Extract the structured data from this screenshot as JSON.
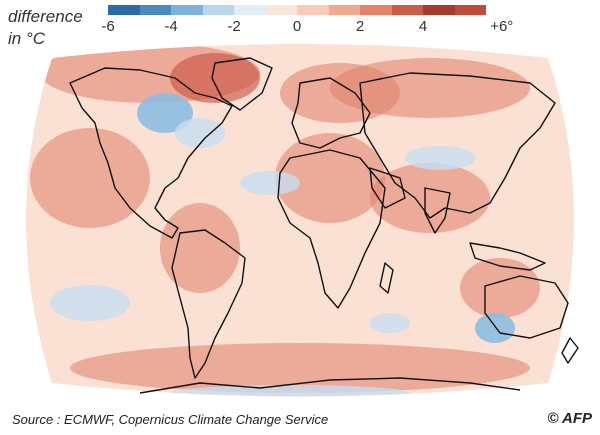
{
  "legend": {
    "title": "difference\nin °C",
    "ticks": [
      "-6",
      "-4",
      "-2",
      "0",
      "2",
      "4",
      "+6°"
    ],
    "colors": [
      "#2b6aa8",
      "#4a8ac0",
      "#7fb2d8",
      "#b9d7ea",
      "#e2eef6",
      "#fbe6dc",
      "#f7cbb8",
      "#f0a991",
      "#e3836b",
      "#cc5a48",
      "#a63a2f",
      "#c14a3a"
    ]
  },
  "footer": {
    "source": "Source : ECMWF, Copernicus Climate Change Service"
  },
  "credit": {
    "text": "© AFP"
  },
  "map": {
    "ocean_color": "#fbe0d4",
    "land_color": "#f2b9a3",
    "warm_color": "#e07e68",
    "hot_color": "#c94f3d",
    "cool_color": "#c6def0",
    "cold_color": "#8dbde0",
    "outline_color": "#111111"
  }
}
